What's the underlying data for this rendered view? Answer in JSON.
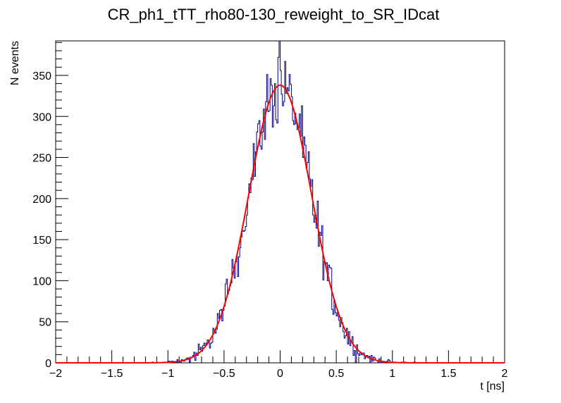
{
  "chart_data": {
    "type": "histogram",
    "title": "CR_ph1_tTT_rho80-130_reweight_to_SR_IDcat",
    "xlabel": "t [ns]",
    "ylabel": "N events",
    "xlim": [
      -2,
      2
    ],
    "ylim": [
      0,
      392
    ],
    "x_ticks": [
      -2,
      -1.5,
      -1,
      -0.5,
      0,
      0.5,
      1,
      1.5,
      2
    ],
    "x_tick_labels": [
      "−2",
      "−1.5",
      "−1",
      "−0.5",
      "0",
      "0.5",
      "1",
      "1.5",
      "2"
    ],
    "y_ticks": [
      0,
      50,
      100,
      150,
      200,
      250,
      300,
      350
    ],
    "y_tick_labels": [
      "0",
      "50",
      "100",
      "150",
      "200",
      "250",
      "300",
      "350"
    ],
    "grid": false,
    "series": [
      {
        "kind": "histogram",
        "color": "#000080",
        "bins": 400,
        "range": [
          -2,
          2
        ],
        "shape": {
          "mean": 0.0,
          "sigma": 0.28,
          "peak": 338,
          "max_bin": 392
        }
      },
      {
        "kind": "gaussian-fit",
        "color": "#ff0000",
        "mean": 0.0,
        "sigma": 0.28,
        "amplitude": 338
      }
    ]
  }
}
